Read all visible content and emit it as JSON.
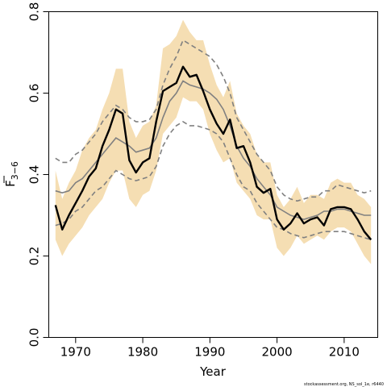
{
  "chart_data": {
    "type": "line",
    "xlabel": "Year",
    "ylabel_main": "F",
    "ylabel_sub": "3−6",
    "xlim": [
      1966,
      2015
    ],
    "ylim": [
      0,
      0.8
    ],
    "xticks": [
      1970,
      1980,
      1990,
      2000,
      2010
    ],
    "yticks": [
      0.0,
      0.2,
      0.4,
      0.6,
      0.8
    ],
    "ytick_labels": [
      "0.0",
      "0.2",
      "0.4",
      "0.6",
      "0.8"
    ],
    "grid": false,
    "legend": "none",
    "footnote": "stockassessment.org, NS_sol_1e, r6440",
    "colors": {
      "band": "#f5deb3",
      "estimate": "#000000",
      "reference": "#808080"
    },
    "x": [
      1967,
      1968,
      1969,
      1970,
      1971,
      1972,
      1973,
      1974,
      1975,
      1976,
      1977,
      1978,
      1979,
      1980,
      1981,
      1982,
      1983,
      1984,
      1985,
      1986,
      1987,
      1988,
      1989,
      1990,
      1991,
      1992,
      1993,
      1994,
      1995,
      1996,
      1997,
      1998,
      1999,
      2000,
      2001,
      2002,
      2003,
      2004,
      2005,
      2006,
      2007,
      2008,
      2009,
      2010,
      2011,
      2012,
      2013,
      2014
    ],
    "series": [
      {
        "role": "ci_lower",
        "values": [
          0.24,
          0.2,
          0.23,
          0.25,
          0.27,
          0.3,
          0.32,
          0.34,
          0.38,
          0.41,
          0.41,
          0.34,
          0.32,
          0.35,
          0.36,
          0.41,
          0.5,
          0.52,
          0.54,
          0.59,
          0.58,
          0.58,
          0.56,
          0.5,
          0.46,
          0.43,
          0.44,
          0.38,
          0.36,
          0.34,
          0.3,
          0.29,
          0.29,
          0.22,
          0.2,
          0.22,
          0.25,
          0.23,
          0.24,
          0.25,
          0.24,
          0.26,
          0.27,
          0.27,
          0.26,
          0.23,
          0.2,
          0.18
        ]
      },
      {
        "role": "ci_upper",
        "values": [
          0.41,
          0.34,
          0.38,
          0.41,
          0.46,
          0.49,
          0.51,
          0.56,
          0.6,
          0.66,
          0.66,
          0.53,
          0.49,
          0.52,
          0.53,
          0.57,
          0.71,
          0.72,
          0.74,
          0.78,
          0.75,
          0.73,
          0.73,
          0.67,
          0.62,
          0.59,
          0.63,
          0.55,
          0.52,
          0.5,
          0.45,
          0.43,
          0.43,
          0.35,
          0.32,
          0.34,
          0.37,
          0.33,
          0.35,
          0.35,
          0.34,
          0.38,
          0.39,
          0.38,
          0.38,
          0.35,
          0.34,
          0.32
        ]
      },
      {
        "role": "reference",
        "values": [
          0.36,
          0.355,
          0.36,
          0.38,
          0.39,
          0.41,
          0.43,
          0.45,
          0.47,
          0.49,
          0.48,
          0.47,
          0.455,
          0.46,
          0.465,
          0.49,
          0.54,
          0.58,
          0.6,
          0.63,
          0.62,
          0.615,
          0.61,
          0.6,
          0.585,
          0.56,
          0.52,
          0.47,
          0.44,
          0.42,
          0.39,
          0.37,
          0.35,
          0.32,
          0.31,
          0.3,
          0.295,
          0.29,
          0.295,
          0.3,
          0.31,
          0.31,
          0.315,
          0.315,
          0.31,
          0.305,
          0.3,
          0.3
        ]
      },
      {
        "role": "ref_upper",
        "values": [
          0.44,
          0.43,
          0.43,
          0.45,
          0.46,
          0.48,
          0.5,
          0.53,
          0.55,
          0.57,
          0.56,
          0.54,
          0.53,
          0.53,
          0.535,
          0.56,
          0.62,
          0.66,
          0.69,
          0.73,
          0.72,
          0.71,
          0.7,
          0.69,
          0.67,
          0.64,
          0.6,
          0.54,
          0.51,
          0.48,
          0.45,
          0.43,
          0.41,
          0.37,
          0.35,
          0.34,
          0.335,
          0.34,
          0.345,
          0.345,
          0.36,
          0.36,
          0.375,
          0.37,
          0.365,
          0.36,
          0.355,
          0.36
        ]
      },
      {
        "role": "ref_lower",
        "values": [
          0.275,
          0.28,
          0.29,
          0.31,
          0.32,
          0.34,
          0.36,
          0.37,
          0.39,
          0.41,
          0.4,
          0.39,
          0.385,
          0.39,
          0.395,
          0.42,
          0.47,
          0.5,
          0.52,
          0.53,
          0.52,
          0.52,
          0.515,
          0.51,
          0.5,
          0.48,
          0.44,
          0.4,
          0.37,
          0.36,
          0.33,
          0.31,
          0.29,
          0.27,
          0.265,
          0.255,
          0.25,
          0.245,
          0.25,
          0.255,
          0.26,
          0.26,
          0.26,
          0.26,
          0.255,
          0.25,
          0.245,
          0.24
        ]
      },
      {
        "role": "estimate",
        "values": [
          0.325,
          0.265,
          0.3,
          0.33,
          0.36,
          0.395,
          0.415,
          0.47,
          0.51,
          0.56,
          0.55,
          0.435,
          0.405,
          0.43,
          0.44,
          0.53,
          0.605,
          0.615,
          0.625,
          0.665,
          0.64,
          0.645,
          0.605,
          0.56,
          0.525,
          0.5,
          0.535,
          0.465,
          0.47,
          0.43,
          0.37,
          0.355,
          0.365,
          0.29,
          0.265,
          0.28,
          0.305,
          0.28,
          0.29,
          0.295,
          0.275,
          0.315,
          0.32,
          0.32,
          0.315,
          0.29,
          0.26,
          0.24
        ]
      }
    ]
  }
}
